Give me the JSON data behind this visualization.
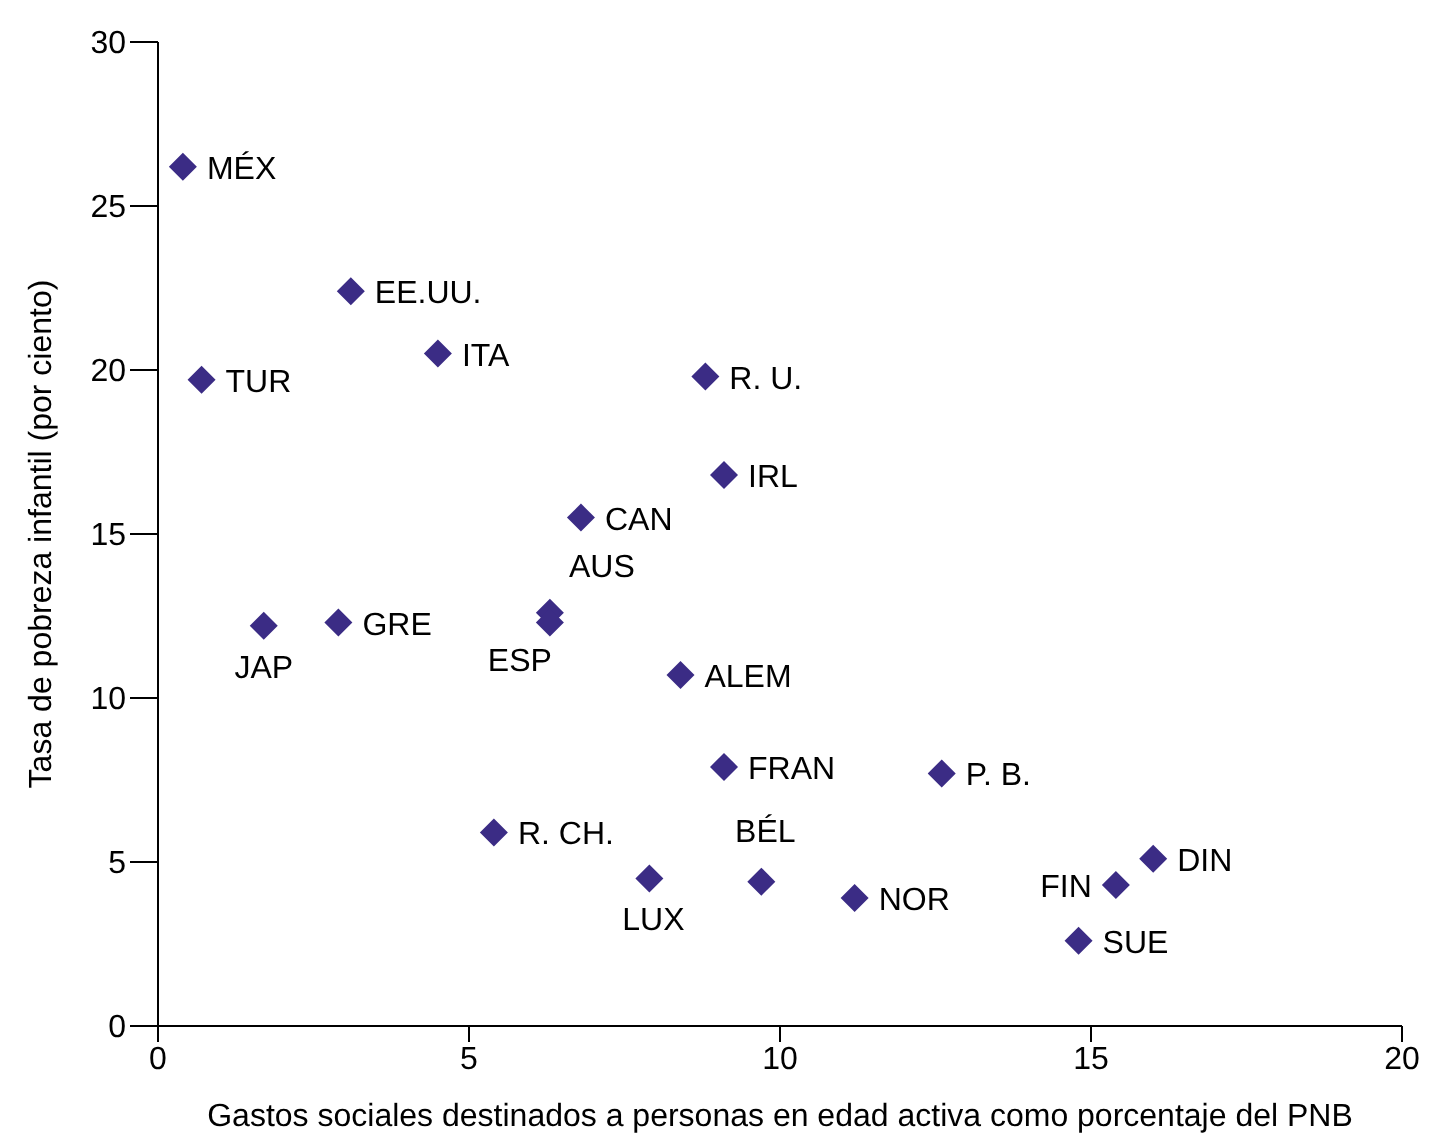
{
  "chart_data": {
    "type": "scatter",
    "xlabel": "Gastos sociales destinados a personas en edad activa como porcentaje del PNB",
    "ylabel": "Tasa de pobreza infantil (por ciento)",
    "x": [
      0.4,
      3.1,
      0.7,
      4.5,
      8.8,
      9.1,
      6.8,
      6.3,
      6.3,
      1.7,
      2.9,
      8.4,
      9.1,
      12.6,
      5.4,
      7.9,
      9.7,
      11.2,
      15.4,
      16.0,
      14.8
    ],
    "series": [
      {
        "color": "#3b2c85",
        "values": [
          26.2,
          22.4,
          19.7,
          20.5,
          19.8,
          16.8,
          15.5,
          12.6,
          12.3,
          12.2,
          12.3,
          10.7,
          7.9,
          7.7,
          5.9,
          4.5,
          4.4,
          3.9,
          4.3,
          5.1,
          2.6
        ]
      }
    ],
    "annotations": [
      {
        "text": "MÉX",
        "x": 0.4,
        "y": 26.2
      },
      {
        "text": "EE.UU.",
        "x": 3.1,
        "y": 22.4
      },
      {
        "text": "TUR",
        "x": 0.7,
        "y": 19.7
      },
      {
        "text": "ITA",
        "x": 4.5,
        "y": 20.5
      },
      {
        "text": "R. U.",
        "x": 8.8,
        "y": 19.8
      },
      {
        "text": "IRL",
        "x": 9.1,
        "y": 16.8
      },
      {
        "text": "CAN",
        "x": 6.8,
        "y": 15.5
      },
      {
        "text": "AUS",
        "x": 6.3,
        "y": 12.6
      },
      {
        "text": "ESP",
        "x": 6.3,
        "y": 12.3
      },
      {
        "text": "JAP",
        "x": 1.7,
        "y": 12.2
      },
      {
        "text": "GRE",
        "x": 2.9,
        "y": 12.3
      },
      {
        "text": "ALEM",
        "x": 8.4,
        "y": 10.7
      },
      {
        "text": "FRAN",
        "x": 9.1,
        "y": 7.9
      },
      {
        "text": "P. B.",
        "x": 12.6,
        "y": 7.7
      },
      {
        "text": "R. CH.",
        "x": 5.4,
        "y": 5.9
      },
      {
        "text": "LUX",
        "x": 7.9,
        "y": 4.5
      },
      {
        "text": "BÉL",
        "x": 9.7,
        "y": 4.4
      },
      {
        "text": "NOR",
        "x": 11.2,
        "y": 3.9
      },
      {
        "text": "FIN",
        "x": 15.4,
        "y": 4.3
      },
      {
        "text": "DIN",
        "x": 16.0,
        "y": 5.1
      },
      {
        "text": "SUE",
        "x": 14.8,
        "y": 2.6
      }
    ],
    "xlim": [
      0,
      20
    ],
    "xticks": [
      0,
      5,
      10,
      15,
      20
    ],
    "ylim": [
      0,
      30
    ],
    "yticks": [
      0,
      5,
      10,
      15,
      20,
      25,
      30
    ],
    "marker": "diamond",
    "grid": false,
    "legend": false
  }
}
